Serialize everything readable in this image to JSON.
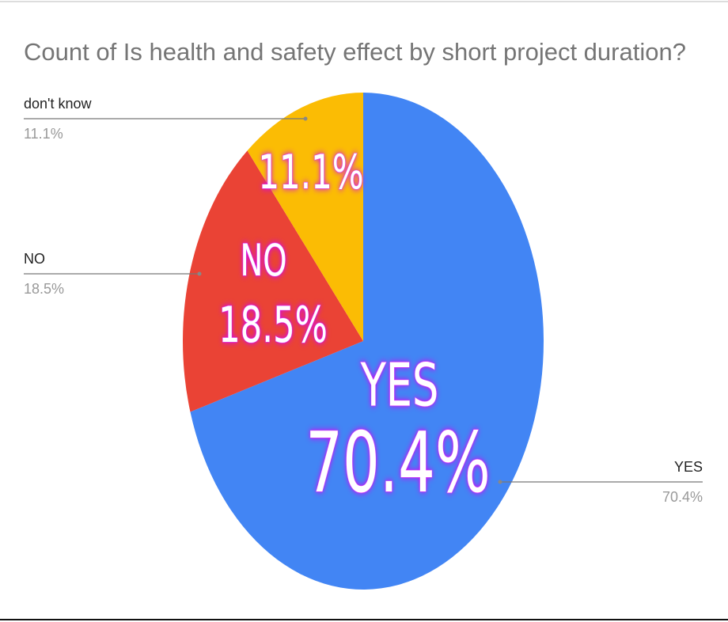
{
  "chart_data": {
    "type": "pie",
    "title": "Count of Is health and safety effect by short project duration?",
    "categories": [
      "YES",
      "NO",
      "don't know"
    ],
    "values": [
      70.4,
      18.5,
      11.1
    ],
    "value_labels": [
      "70.4%",
      "18.5%",
      "11.1%"
    ],
    "colors": [
      "#4285f4",
      "#ea4335",
      "#fbbc04"
    ]
  }
}
